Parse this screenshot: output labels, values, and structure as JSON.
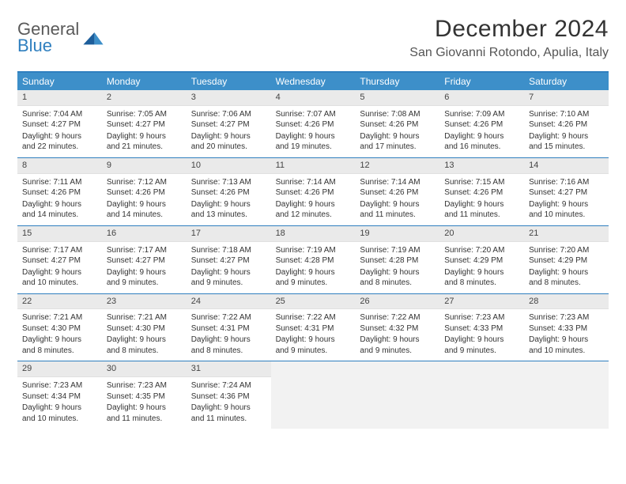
{
  "logo": {
    "line1": "General",
    "line2": "Blue"
  },
  "title": "December 2024",
  "location": "San Giovanni Rotondo, Apulia, Italy",
  "colors": {
    "header_bg": "#3d8fc9",
    "border": "#2f7fbf",
    "daynum_bg": "#eaeaea",
    "empty_bg": "#f2f2f2"
  },
  "weekdays": [
    "Sunday",
    "Monday",
    "Tuesday",
    "Wednesday",
    "Thursday",
    "Friday",
    "Saturday"
  ],
  "weeks": [
    [
      {
        "n": "1",
        "sunrise": "Sunrise: 7:04 AM",
        "sunset": "Sunset: 4:27 PM",
        "day1": "Daylight: 9 hours",
        "day2": "and 22 minutes."
      },
      {
        "n": "2",
        "sunrise": "Sunrise: 7:05 AM",
        "sunset": "Sunset: 4:27 PM",
        "day1": "Daylight: 9 hours",
        "day2": "and 21 minutes."
      },
      {
        "n": "3",
        "sunrise": "Sunrise: 7:06 AM",
        "sunset": "Sunset: 4:27 PM",
        "day1": "Daylight: 9 hours",
        "day2": "and 20 minutes."
      },
      {
        "n": "4",
        "sunrise": "Sunrise: 7:07 AM",
        "sunset": "Sunset: 4:26 PM",
        "day1": "Daylight: 9 hours",
        "day2": "and 19 minutes."
      },
      {
        "n": "5",
        "sunrise": "Sunrise: 7:08 AM",
        "sunset": "Sunset: 4:26 PM",
        "day1": "Daylight: 9 hours",
        "day2": "and 17 minutes."
      },
      {
        "n": "6",
        "sunrise": "Sunrise: 7:09 AM",
        "sunset": "Sunset: 4:26 PM",
        "day1": "Daylight: 9 hours",
        "day2": "and 16 minutes."
      },
      {
        "n": "7",
        "sunrise": "Sunrise: 7:10 AM",
        "sunset": "Sunset: 4:26 PM",
        "day1": "Daylight: 9 hours",
        "day2": "and 15 minutes."
      }
    ],
    [
      {
        "n": "8",
        "sunrise": "Sunrise: 7:11 AM",
        "sunset": "Sunset: 4:26 PM",
        "day1": "Daylight: 9 hours",
        "day2": "and 14 minutes."
      },
      {
        "n": "9",
        "sunrise": "Sunrise: 7:12 AM",
        "sunset": "Sunset: 4:26 PM",
        "day1": "Daylight: 9 hours",
        "day2": "and 14 minutes."
      },
      {
        "n": "10",
        "sunrise": "Sunrise: 7:13 AM",
        "sunset": "Sunset: 4:26 PM",
        "day1": "Daylight: 9 hours",
        "day2": "and 13 minutes."
      },
      {
        "n": "11",
        "sunrise": "Sunrise: 7:14 AM",
        "sunset": "Sunset: 4:26 PM",
        "day1": "Daylight: 9 hours",
        "day2": "and 12 minutes."
      },
      {
        "n": "12",
        "sunrise": "Sunrise: 7:14 AM",
        "sunset": "Sunset: 4:26 PM",
        "day1": "Daylight: 9 hours",
        "day2": "and 11 minutes."
      },
      {
        "n": "13",
        "sunrise": "Sunrise: 7:15 AM",
        "sunset": "Sunset: 4:26 PM",
        "day1": "Daylight: 9 hours",
        "day2": "and 11 minutes."
      },
      {
        "n": "14",
        "sunrise": "Sunrise: 7:16 AM",
        "sunset": "Sunset: 4:27 PM",
        "day1": "Daylight: 9 hours",
        "day2": "and 10 minutes."
      }
    ],
    [
      {
        "n": "15",
        "sunrise": "Sunrise: 7:17 AM",
        "sunset": "Sunset: 4:27 PM",
        "day1": "Daylight: 9 hours",
        "day2": "and 10 minutes."
      },
      {
        "n": "16",
        "sunrise": "Sunrise: 7:17 AM",
        "sunset": "Sunset: 4:27 PM",
        "day1": "Daylight: 9 hours",
        "day2": "and 9 minutes."
      },
      {
        "n": "17",
        "sunrise": "Sunrise: 7:18 AM",
        "sunset": "Sunset: 4:27 PM",
        "day1": "Daylight: 9 hours",
        "day2": "and 9 minutes."
      },
      {
        "n": "18",
        "sunrise": "Sunrise: 7:19 AM",
        "sunset": "Sunset: 4:28 PM",
        "day1": "Daylight: 9 hours",
        "day2": "and 9 minutes."
      },
      {
        "n": "19",
        "sunrise": "Sunrise: 7:19 AM",
        "sunset": "Sunset: 4:28 PM",
        "day1": "Daylight: 9 hours",
        "day2": "and 8 minutes."
      },
      {
        "n": "20",
        "sunrise": "Sunrise: 7:20 AM",
        "sunset": "Sunset: 4:29 PM",
        "day1": "Daylight: 9 hours",
        "day2": "and 8 minutes."
      },
      {
        "n": "21",
        "sunrise": "Sunrise: 7:20 AM",
        "sunset": "Sunset: 4:29 PM",
        "day1": "Daylight: 9 hours",
        "day2": "and 8 minutes."
      }
    ],
    [
      {
        "n": "22",
        "sunrise": "Sunrise: 7:21 AM",
        "sunset": "Sunset: 4:30 PM",
        "day1": "Daylight: 9 hours",
        "day2": "and 8 minutes."
      },
      {
        "n": "23",
        "sunrise": "Sunrise: 7:21 AM",
        "sunset": "Sunset: 4:30 PM",
        "day1": "Daylight: 9 hours",
        "day2": "and 8 minutes."
      },
      {
        "n": "24",
        "sunrise": "Sunrise: 7:22 AM",
        "sunset": "Sunset: 4:31 PM",
        "day1": "Daylight: 9 hours",
        "day2": "and 8 minutes."
      },
      {
        "n": "25",
        "sunrise": "Sunrise: 7:22 AM",
        "sunset": "Sunset: 4:31 PM",
        "day1": "Daylight: 9 hours",
        "day2": "and 9 minutes."
      },
      {
        "n": "26",
        "sunrise": "Sunrise: 7:22 AM",
        "sunset": "Sunset: 4:32 PM",
        "day1": "Daylight: 9 hours",
        "day2": "and 9 minutes."
      },
      {
        "n": "27",
        "sunrise": "Sunrise: 7:23 AM",
        "sunset": "Sunset: 4:33 PM",
        "day1": "Daylight: 9 hours",
        "day2": "and 9 minutes."
      },
      {
        "n": "28",
        "sunrise": "Sunrise: 7:23 AM",
        "sunset": "Sunset: 4:33 PM",
        "day1": "Daylight: 9 hours",
        "day2": "and 10 minutes."
      }
    ],
    [
      {
        "n": "29",
        "sunrise": "Sunrise: 7:23 AM",
        "sunset": "Sunset: 4:34 PM",
        "day1": "Daylight: 9 hours",
        "day2": "and 10 minutes."
      },
      {
        "n": "30",
        "sunrise": "Sunrise: 7:23 AM",
        "sunset": "Sunset: 4:35 PM",
        "day1": "Daylight: 9 hours",
        "day2": "and 11 minutes."
      },
      {
        "n": "31",
        "sunrise": "Sunrise: 7:24 AM",
        "sunset": "Sunset: 4:36 PM",
        "day1": "Daylight: 9 hours",
        "day2": "and 11 minutes."
      },
      null,
      null,
      null,
      null
    ]
  ]
}
